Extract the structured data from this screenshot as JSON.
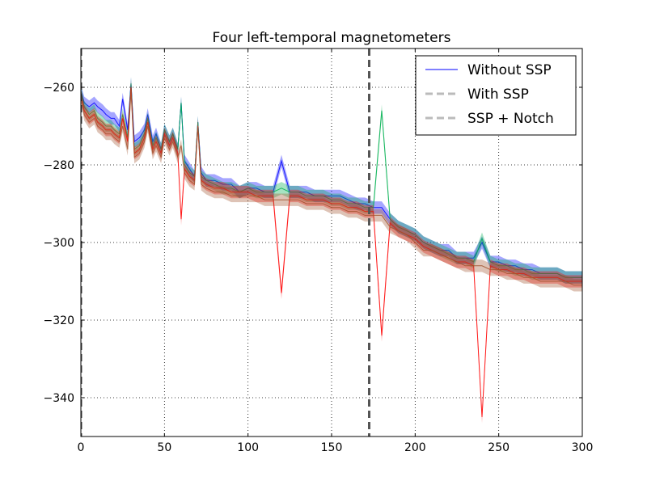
{
  "chart_data": {
    "type": "line",
    "title": "Four left-temporal magnetometers",
    "xlabel": "",
    "ylabel": "",
    "xlim": [
      0,
      300
    ],
    "ylim": [
      -350,
      -250
    ],
    "x_ticks": [
      0,
      50,
      100,
      150,
      200,
      250,
      300
    ],
    "y_ticks": [
      -260,
      -280,
      -300,
      -320,
      -340
    ],
    "x_tick_labels": [
      "0",
      "50",
      "100",
      "150",
      "200",
      "250",
      "300"
    ],
    "y_tick_labels": [
      "−260",
      "−280",
      "−300",
      "−320",
      "−340"
    ],
    "grid": true,
    "legend_position": "top-right",
    "legend": [
      {
        "label": "Without SSP",
        "color": "#0000ff",
        "style": "solid"
      },
      {
        "label": "With SSP",
        "color": "#bbbbbb",
        "style": "dashed"
      },
      {
        "label": "SSP + Notch",
        "color": "#bbbbbb",
        "style": "dashed"
      }
    ],
    "vlines": [
      {
        "x": 0,
        "color": "#444444",
        "style": "dashed"
      },
      {
        "x": 172.5,
        "color": "#555555",
        "style": "dashed"
      }
    ],
    "series": [
      {
        "name": "Without SSP",
        "color": "#0000ff",
        "x": [
          0,
          2,
          5,
          8,
          10,
          13,
          15,
          18,
          20,
          23,
          25,
          28,
          30,
          32,
          35,
          38,
          40,
          43,
          45,
          48,
          50,
          53,
          55,
          58,
          60,
          62,
          65,
          68,
          70,
          72,
          75,
          80,
          85,
          90,
          95,
          100,
          105,
          110,
          115,
          120,
          125,
          130,
          135,
          140,
          145,
          150,
          155,
          160,
          165,
          170,
          175,
          180,
          185,
          190,
          195,
          200,
          205,
          210,
          215,
          220,
          225,
          230,
          235,
          240,
          245,
          250,
          255,
          260,
          265,
          270,
          275,
          280,
          285,
          290,
          295,
          300
        ],
        "y": [
          -261,
          -264,
          -265,
          -264,
          -265,
          -266,
          -267,
          -268,
          -268,
          -270,
          -263,
          -271,
          -259,
          -274,
          -273,
          -271,
          -267,
          -274,
          -272,
          -276,
          -271,
          -274,
          -272,
          -276,
          -264,
          -279,
          -281,
          -283,
          -269,
          -282,
          -284,
          -284,
          -285,
          -285,
          -287,
          -286,
          -286,
          -287,
          -287,
          -279,
          -287,
          -287,
          -287,
          -288,
          -288,
          -288,
          -288,
          -289,
          -290,
          -290,
          -291,
          -291,
          -294,
          -296,
          -297,
          -298,
          -300,
          -301,
          -302,
          -302,
          -304,
          -304,
          -304,
          -300,
          -305,
          -305,
          -306,
          -306,
          -307,
          -307,
          -308,
          -308,
          -308,
          -309,
          -309,
          -309
        ]
      },
      {
        "name": "",
        "color": "#00b050",
        "x": [
          0,
          2,
          5,
          8,
          10,
          13,
          15,
          18,
          20,
          23,
          25,
          28,
          30,
          32,
          35,
          38,
          40,
          43,
          45,
          48,
          50,
          53,
          55,
          58,
          60,
          62,
          65,
          68,
          70,
          72,
          75,
          80,
          85,
          90,
          95,
          100,
          105,
          110,
          115,
          120,
          125,
          130,
          135,
          140,
          145,
          150,
          155,
          160,
          165,
          170,
          175,
          180,
          185,
          190,
          195,
          200,
          205,
          210,
          215,
          220,
          225,
          230,
          235,
          240,
          245,
          250,
          255,
          260,
          265,
          270,
          275,
          280,
          285,
          290,
          295,
          300
        ],
        "y": [
          -261,
          -265,
          -267,
          -266,
          -268,
          -269,
          -270,
          -270,
          -271,
          -272,
          -267,
          -273,
          -259,
          -276,
          -275,
          -272,
          -268,
          -275,
          -273,
          -276,
          -271,
          -274,
          -272,
          -276,
          -264,
          -280,
          -282,
          -283,
          -269,
          -283,
          -284,
          -285,
          -286,
          -286,
          -287,
          -286,
          -287,
          -287,
          -287,
          -286,
          -287,
          -287,
          -288,
          -288,
          -288,
          -289,
          -289,
          -290,
          -290,
          -291,
          -291,
          -266,
          -294,
          -296,
          -297,
          -298,
          -300,
          -301,
          -302,
          -303,
          -304,
          -304,
          -305,
          -299,
          -305,
          -306,
          -306,
          -307,
          -307,
          -308,
          -308,
          -308,
          -308,
          -309,
          -309,
          -309
        ]
      },
      {
        "name": "",
        "color": "#ff0000",
        "x": [
          0,
          2,
          5,
          8,
          10,
          13,
          15,
          18,
          20,
          23,
          25,
          28,
          30,
          32,
          35,
          38,
          40,
          43,
          45,
          48,
          50,
          53,
          55,
          58,
          60,
          62,
          65,
          68,
          70,
          72,
          75,
          80,
          85,
          90,
          95,
          100,
          105,
          110,
          115,
          120,
          125,
          130,
          135,
          140,
          145,
          150,
          155,
          160,
          165,
          170,
          175,
          180,
          185,
          190,
          195,
          200,
          205,
          210,
          215,
          220,
          225,
          230,
          235,
          240,
          245,
          250,
          255,
          260,
          265,
          270,
          275,
          280,
          285,
          290,
          295,
          300
        ],
        "y": [
          -262,
          -266,
          -268,
          -267,
          -269,
          -270,
          -271,
          -271,
          -272,
          -273,
          -268,
          -274,
          -260,
          -277,
          -276,
          -273,
          -269,
          -276,
          -274,
          -277,
          -272,
          -275,
          -273,
          -277,
          -294,
          -281,
          -283,
          -284,
          -270,
          -284,
          -285,
          -286,
          -286,
          -287,
          -287,
          -287,
          -288,
          -288,
          -288,
          -313,
          -288,
          -288,
          -289,
          -289,
          -289,
          -290,
          -290,
          -291,
          -291,
          -292,
          -292,
          -324,
          -295,
          -297,
          -298,
          -299,
          -301,
          -302,
          -303,
          -304,
          -305,
          -305,
          -306,
          -345,
          -306,
          -307,
          -307,
          -308,
          -308,
          -309,
          -309,
          -309,
          -309,
          -310,
          -310,
          -310
        ]
      },
      {
        "name": "",
        "color": "#a0522d",
        "x": [
          0,
          2,
          5,
          8,
          10,
          13,
          15,
          18,
          20,
          23,
          25,
          28,
          30,
          32,
          35,
          38,
          40,
          43,
          45,
          48,
          50,
          53,
          55,
          58,
          60,
          62,
          65,
          68,
          70,
          72,
          75,
          80,
          85,
          90,
          95,
          100,
          105,
          110,
          115,
          120,
          125,
          130,
          135,
          140,
          145,
          150,
          155,
          160,
          165,
          170,
          175,
          180,
          185,
          190,
          195,
          200,
          205,
          210,
          215,
          220,
          225,
          230,
          235,
          240,
          245,
          250,
          255,
          260,
          265,
          270,
          275,
          280,
          285,
          290,
          295,
          300
        ],
        "y": [
          -262,
          -267,
          -269,
          -268,
          -270,
          -271,
          -272,
          -272,
          -273,
          -274,
          -270,
          -276,
          -261,
          -278,
          -277,
          -274,
          -270,
          -277,
          -275,
          -278,
          -273,
          -276,
          -274,
          -278,
          -275,
          -282,
          -284,
          -285,
          -270,
          -285,
          -286,
          -287,
          -287,
          -288,
          -288,
          -288,
          -288,
          -289,
          -289,
          -289,
          -289,
          -289,
          -290,
          -290,
          -290,
          -291,
          -291,
          -292,
          -292,
          -293,
          -293,
          -293,
          -296,
          -297,
          -298,
          -300,
          -302,
          -302,
          -303,
          -304,
          -305,
          -306,
          -306,
          -306,
          -307,
          -307,
          -308,
          -308,
          -309,
          -309,
          -310,
          -310,
          -310,
          -310,
          -311,
          -311
        ]
      }
    ]
  }
}
